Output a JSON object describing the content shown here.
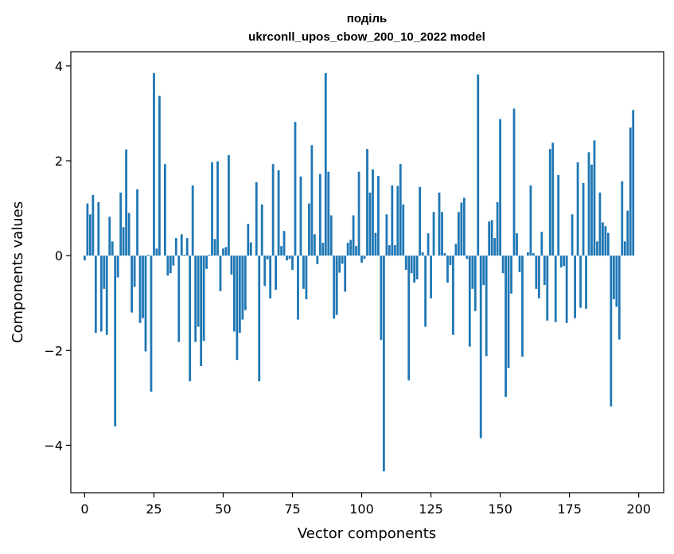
{
  "chart_data": {
    "type": "bar",
    "title": "поділь",
    "subtitle": "ukrconll_upos_cbow_200_10_2022 model",
    "xlabel": "Vector components",
    "ylabel": "Components values",
    "xlim": [
      -5,
      209
    ],
    "ylim": [
      -5,
      4.3
    ],
    "xticks": [
      0,
      25,
      50,
      75,
      100,
      125,
      150,
      175,
      200
    ],
    "yticks": [
      -4,
      -2,
      0,
      2,
      4
    ],
    "xtick_labels": [
      "0",
      "25",
      "50",
      "75",
      "100",
      "125",
      "150",
      "175",
      "200"
    ],
    "ytick_labels": [
      "−4",
      "−2",
      "0",
      "2",
      "4"
    ],
    "grid": false,
    "bar_color": "#1f77b4",
    "values": [
      -0.1,
      1.1,
      0.87,
      1.28,
      -1.63,
      1.13,
      -1.6,
      -0.7,
      -1.67,
      0.82,
      0.3,
      -3.6,
      -0.46,
      1.33,
      0.6,
      2.24,
      0.9,
      -1.2,
      -0.66,
      1.4,
      -1.42,
      -1.32,
      -2.02,
      0.02,
      -2.87,
      3.85,
      0.15,
      3.37,
      0.0,
      1.93,
      -0.42,
      -0.37,
      -0.21,
      0.37,
      -1.82,
      0.45,
      0.02,
      0.37,
      -2.65,
      1.48,
      -1.82,
      -1.5,
      -2.33,
      -1.8,
      -0.28,
      0.02,
      1.97,
      0.35,
      1.99,
      -0.75,
      0.15,
      0.18,
      2.12,
      -0.4,
      -1.6,
      -2.2,
      -1.63,
      -1.35,
      -1.15,
      0.67,
      0.28,
      0.0,
      1.55,
      -2.65,
      1.08,
      -0.64,
      -0.08,
      -0.9,
      1.93,
      -0.72,
      1.8,
      0.2,
      0.52,
      -0.1,
      -0.07,
      -0.3,
      2.82,
      -1.35,
      1.67,
      -0.7,
      -0.92,
      1.1,
      2.33,
      0.45,
      -0.18,
      1.72,
      0.27,
      3.85,
      1.77,
      0.85,
      -1.33,
      -1.25,
      -0.36,
      -0.17,
      -0.76,
      0.27,
      0.33,
      0.85,
      0.2,
      1.77,
      -0.15,
      -0.07,
      2.25,
      1.33,
      1.82,
      0.48,
      1.68,
      -1.78,
      -4.55,
      0.87,
      0.22,
      1.48,
      0.22,
      1.47,
      1.93,
      1.08,
      -0.3,
      -2.63,
      -0.37,
      -0.57,
      -0.5,
      1.45,
      0.07,
      -1.5,
      0.47,
      -0.9,
      0.92,
      0.0,
      1.33,
      0.92,
      0.05,
      -0.57,
      -0.2,
      -1.67,
      0.25,
      0.92,
      1.12,
      1.22,
      -0.07,
      -1.92,
      -0.7,
      -1.17,
      3.82,
      -3.85,
      -0.62,
      -2.12,
      0.72,
      0.75,
      0.37,
      1.13,
      2.88,
      -0.37,
      -2.98,
      -2.37,
      -0.8,
      3.1,
      0.47,
      -0.35,
      -2.13,
      0.0,
      0.07,
      1.48,
      0.05,
      -0.7,
      -0.9,
      0.5,
      -0.62,
      -1.37,
      2.25,
      2.38,
      -1.4,
      1.7,
      -0.25,
      -0.22,
      -1.42,
      0.0,
      0.87,
      -1.32,
      1.97,
      -1.1,
      1.53,
      -1.12,
      2.18,
      1.92,
      2.43,
      0.3,
      1.33,
      0.7,
      0.62,
      0.48,
      -3.18,
      -0.92,
      -1.08,
      -1.77,
      1.57,
      0.3,
      0.95,
      2.7,
      3.07
    ]
  }
}
